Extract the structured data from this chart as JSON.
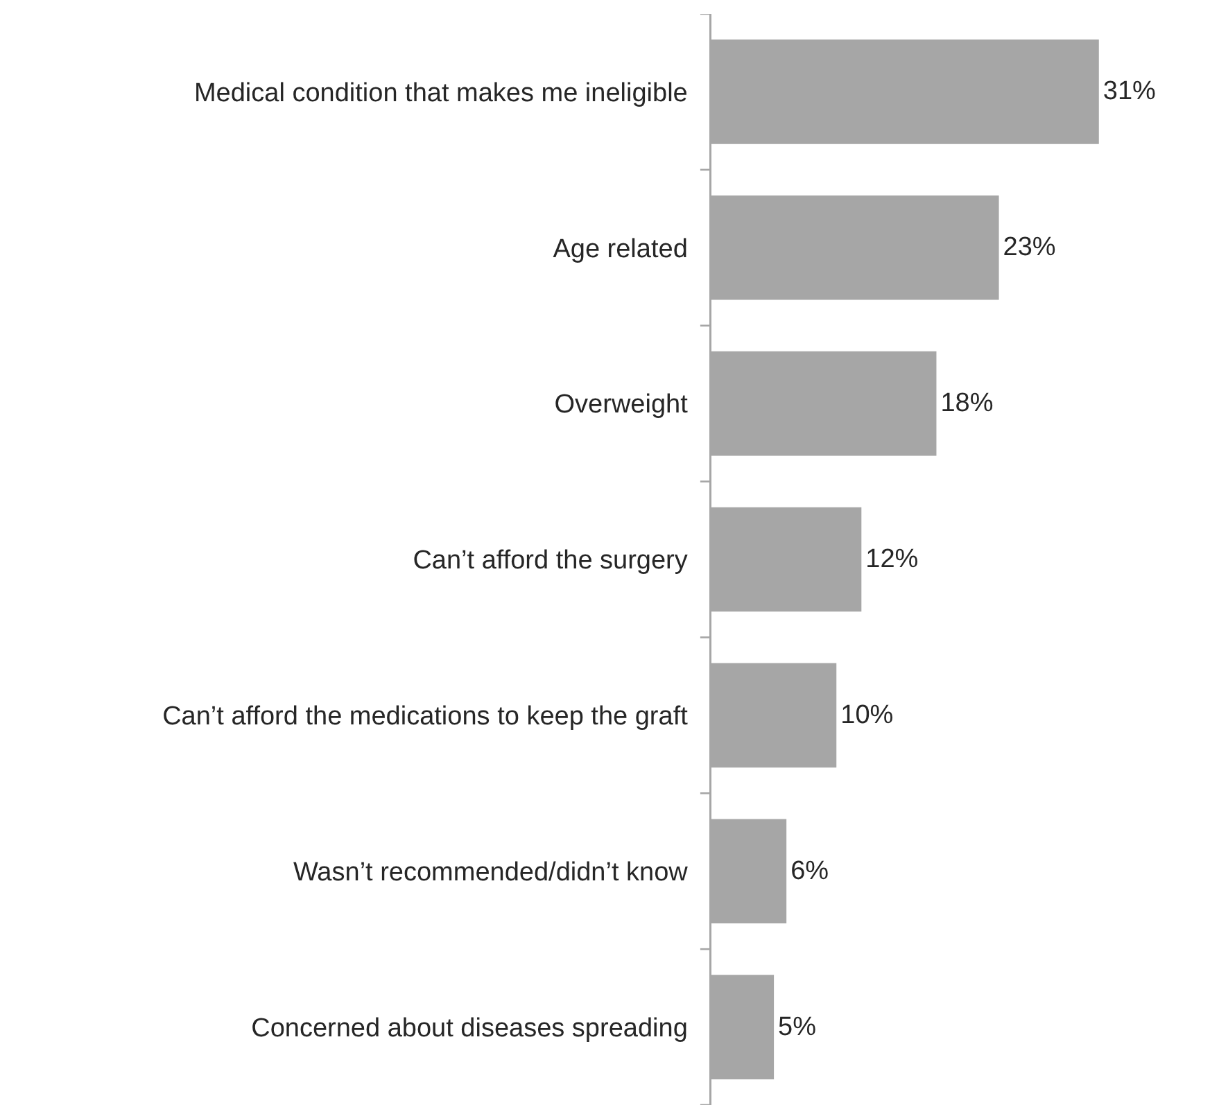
{
  "chart_data": {
    "type": "bar",
    "orientation": "horizontal",
    "categories": [
      "Medical condition that makes me ineligible",
      "Age related",
      "Overweight",
      "Can’t afford the surgery",
      "Can’t afford the medications to keep the graft",
      "Wasn’t recommended/didn’t know",
      "Concerned about diseases spreading"
    ],
    "values": [
      31,
      23,
      18,
      12,
      10,
      6,
      5
    ],
    "value_labels": [
      "31%",
      "23%",
      "18%",
      "12%",
      "10%",
      "6%",
      "5%"
    ],
    "color": "#a6a6a6"
  }
}
